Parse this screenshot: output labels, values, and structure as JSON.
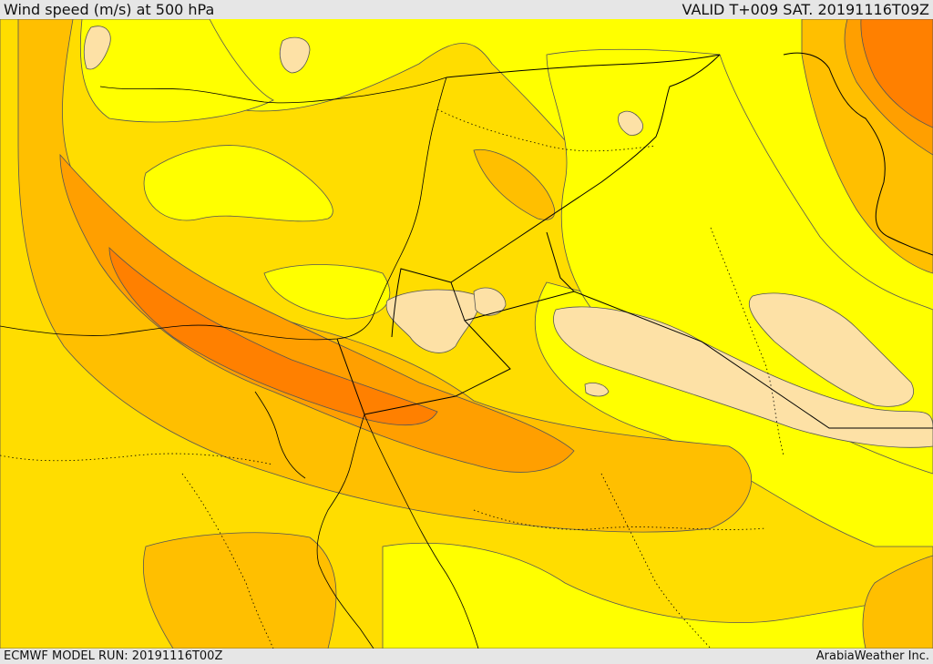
{
  "header": {
    "title": "Wind speed (m/s) at 500 hPa",
    "valid": "VALID T+009 SAT. 20191116T09Z"
  },
  "footer": {
    "model_run": "ECMWF MODEL RUN: 20191116T00Z",
    "credit": "ArabiaWeather Inc."
  },
  "colors": {
    "band_lowest": "#ffff00",
    "band_low": "#ffdd00",
    "band_mid": "#ffbf00",
    "band_high": "#ff9f00",
    "band_higher": "#ff8000",
    "calm_area": "#fde1a6",
    "contour_line": "#555555",
    "border_line": "#000000"
  }
}
